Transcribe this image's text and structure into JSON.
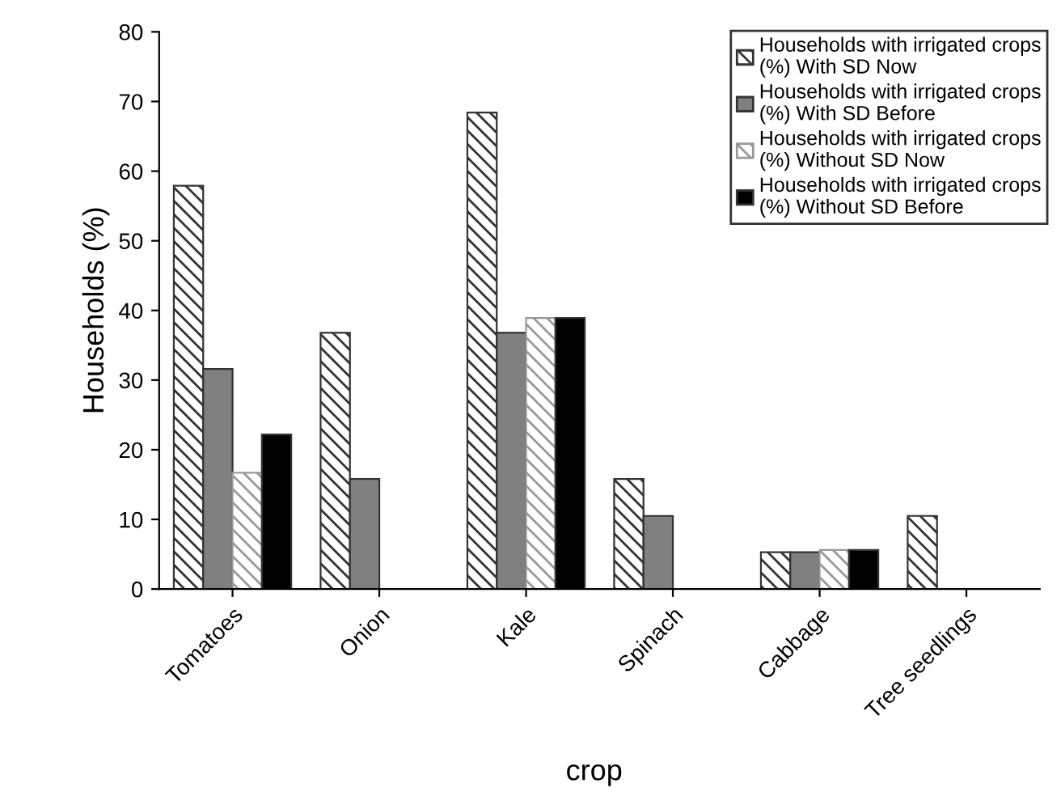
{
  "chart_data": {
    "type": "bar",
    "xlabel": "crop",
    "ylabel": "Households (%)",
    "categories": [
      "Tomatoes",
      "Onion",
      "Kale",
      "Spinach",
      "Cabbage",
      "Tree seedlings"
    ],
    "series": [
      {
        "name": "Households with irrigated crops (%) With SD Now",
        "color": "#333333",
        "values": [
          57.9,
          36.8,
          68.4,
          15.8,
          5.3,
          10.5
        ]
      },
      {
        "name": "Households with irrigated crops (%) With SD Before",
        "color": "#808080",
        "values": [
          31.6,
          15.8,
          36.8,
          10.5,
          5.3,
          null
        ]
      },
      {
        "name": "Households with irrigated crops (%) Without SD Now",
        "color": "#999999",
        "values": [
          16.7,
          null,
          38.9,
          null,
          5.6,
          null
        ]
      },
      {
        "name": "Households with irrigated crops (%) Without SD Before",
        "color": "#000000",
        "values": [
          22.2,
          null,
          38.9,
          null,
          5.6,
          null
        ]
      }
    ],
    "ylim": [
      0,
      80
    ],
    "yticks": [
      0,
      10,
      20,
      30,
      40,
      50,
      60,
      70,
      80
    ],
    "grid": false,
    "legend": "top right"
  }
}
